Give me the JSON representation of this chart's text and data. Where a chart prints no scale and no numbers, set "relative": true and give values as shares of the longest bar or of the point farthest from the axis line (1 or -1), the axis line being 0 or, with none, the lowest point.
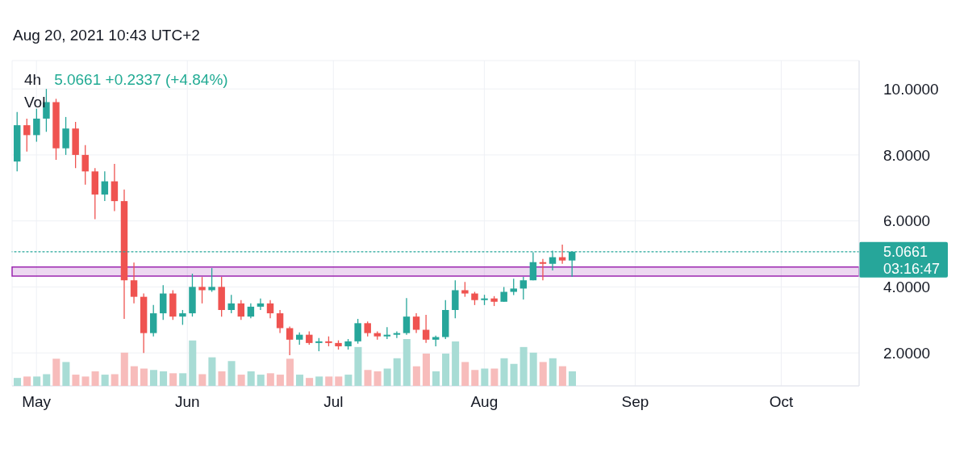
{
  "chart_data": [
    {
      "type": "candlestick",
      "title": "4h",
      "subtitle": "5.0661 +0.2337 (+4.84%)",
      "x": [
        "2021-04-27",
        "2021-04-29",
        "2021-05-01",
        "2021-05-03",
        "2021-05-05",
        "2021-05-07",
        "2021-05-09",
        "2021-05-11",
        "2021-05-13",
        "2021-05-15",
        "2021-05-17",
        "2021-05-19",
        "2021-05-21",
        "2021-05-23",
        "2021-05-25",
        "2021-05-27",
        "2021-05-29",
        "2021-05-31",
        "2021-06-02",
        "2021-06-04",
        "2021-06-06",
        "2021-06-08",
        "2021-06-10",
        "2021-06-12",
        "2021-06-14",
        "2021-06-16",
        "2021-06-18",
        "2021-06-20",
        "2021-06-22",
        "2021-06-24",
        "2021-06-26",
        "2021-06-28",
        "2021-06-30",
        "2021-07-02",
        "2021-07-04",
        "2021-07-06",
        "2021-07-08",
        "2021-07-10",
        "2021-07-12",
        "2021-07-14",
        "2021-07-16",
        "2021-07-18",
        "2021-07-20",
        "2021-07-22",
        "2021-07-24",
        "2021-07-26",
        "2021-07-28",
        "2021-07-30",
        "2021-08-01",
        "2021-08-03",
        "2021-08-05",
        "2021-08-07",
        "2021-08-09",
        "2021-08-11",
        "2021-08-13",
        "2021-08-15",
        "2021-08-17",
        "2021-08-19"
      ],
      "ohlc": [
        [
          7.8,
          9.3,
          7.5,
          8.9
        ],
        [
          8.9,
          9.1,
          8.1,
          8.6
        ],
        [
          8.6,
          9.4,
          8.4,
          9.1
        ],
        [
          9.1,
          10.0,
          8.7,
          9.6
        ],
        [
          9.6,
          9.7,
          7.85,
          8.2
        ],
        [
          8.2,
          9.15,
          8.0,
          8.8
        ],
        [
          8.8,
          9.0,
          7.6,
          8.0
        ],
        [
          8.0,
          8.3,
          7.1,
          7.5
        ],
        [
          7.5,
          7.6,
          6.05,
          6.8
        ],
        [
          6.8,
          7.5,
          6.6,
          7.2
        ],
        [
          7.2,
          7.73,
          6.3,
          6.6
        ],
        [
          6.6,
          6.95,
          3.03,
          4.2
        ],
        [
          4.2,
          4.74,
          3.5,
          3.7
        ],
        [
          3.7,
          3.8,
          2.0,
          2.6
        ],
        [
          2.6,
          3.45,
          2.5,
          3.2
        ],
        [
          3.2,
          4.05,
          3.0,
          3.8
        ],
        [
          3.8,
          3.9,
          3.0,
          3.1
        ],
        [
          3.1,
          3.3,
          2.85,
          3.2
        ],
        [
          3.2,
          4.4,
          3.1,
          4.0
        ],
        [
          4.0,
          4.3,
          3.5,
          3.9
        ],
        [
          3.9,
          4.57,
          3.85,
          4.0
        ],
        [
          4.0,
          4.3,
          3.1,
          3.3
        ],
        [
          3.3,
          3.76,
          3.2,
          3.5
        ],
        [
          3.5,
          3.6,
          3.0,
          3.1
        ],
        [
          3.1,
          3.5,
          3.05,
          3.4
        ],
        [
          3.4,
          3.65,
          3.3,
          3.5
        ],
        [
          3.5,
          3.6,
          3.05,
          3.2
        ],
        [
          3.2,
          3.3,
          2.6,
          2.75
        ],
        [
          2.75,
          2.8,
          1.93,
          2.4
        ],
        [
          2.4,
          2.62,
          2.25,
          2.55
        ],
        [
          2.55,
          2.65,
          2.25,
          2.3
        ],
        [
          2.3,
          2.45,
          2.05,
          2.35
        ],
        [
          2.35,
          2.5,
          2.2,
          2.3
        ],
        [
          2.3,
          2.38,
          2.1,
          2.2
        ],
        [
          2.2,
          2.42,
          2.1,
          2.35
        ],
        [
          2.35,
          3.03,
          2.28,
          2.9
        ],
        [
          2.9,
          2.95,
          2.5,
          2.6
        ],
        [
          2.6,
          2.65,
          2.4,
          2.5
        ],
        [
          2.5,
          2.78,
          2.42,
          2.55
        ],
        [
          2.55,
          2.65,
          2.45,
          2.6
        ],
        [
          2.6,
          3.66,
          2.55,
          3.1
        ],
        [
          3.1,
          3.2,
          2.6,
          2.7
        ],
        [
          2.7,
          3.15,
          2.3,
          2.4
        ],
        [
          2.4,
          2.52,
          2.2,
          2.48
        ],
        [
          2.48,
          3.6,
          2.42,
          3.3
        ],
        [
          3.3,
          4.2,
          3.05,
          3.9
        ],
        [
          3.9,
          4.15,
          3.7,
          3.8
        ],
        [
          3.8,
          3.85,
          3.45,
          3.6
        ],
        [
          3.6,
          3.76,
          3.45,
          3.65
        ],
        [
          3.65,
          3.72,
          3.42,
          3.55
        ],
        [
          3.55,
          4.0,
          3.55,
          3.85
        ],
        [
          3.85,
          4.25,
          3.75,
          3.95
        ],
        [
          3.95,
          4.3,
          3.62,
          4.2
        ],
        [
          4.2,
          5.05,
          4.2,
          4.75
        ],
        [
          4.75,
          4.85,
          4.2,
          4.7
        ],
        [
          4.7,
          5.1,
          4.5,
          4.9
        ],
        [
          4.9,
          5.28,
          4.7,
          4.8
        ],
        [
          4.8,
          5.07,
          4.3,
          5.0661
        ]
      ],
      "colors": [
        "#26a69a",
        "#ef5350",
        "#26a69a",
        "#26a69a",
        "#ef5350",
        "#26a69a",
        "#ef5350",
        "#ef5350",
        "#ef5350",
        "#26a69a",
        "#ef5350",
        "#ef5350",
        "#ef5350",
        "#ef5350",
        "#26a69a",
        "#26a69a",
        "#ef5350",
        "#26a69a",
        "#26a69a",
        "#ef5350",
        "#26a69a",
        "#ef5350",
        "#26a69a",
        "#ef5350",
        "#26a69a",
        "#26a69a",
        "#ef5350",
        "#ef5350",
        "#ef5350",
        "#26a69a",
        "#ef5350",
        "#26a69a",
        "#ef5350",
        "#ef5350",
        "#26a69a",
        "#26a69a",
        "#ef5350",
        "#ef5350",
        "#26a69a",
        "#26a69a",
        "#26a69a",
        "#ef5350",
        "#ef5350",
        "#26a69a",
        "#26a69a",
        "#26a69a",
        "#ef5350",
        "#ef5350",
        "#26a69a",
        "#ef5350",
        "#26a69a",
        "#26a69a",
        "#26a69a",
        "#26a69a",
        "#ef5350",
        "#26a69a",
        "#ef5350",
        "#26a69a"
      ],
      "xlim": [
        "2021-04-26",
        "2021-10-17"
      ],
      "xticks": [
        {
          "value": "2021-05-01",
          "label": "May"
        },
        {
          "value": "2021-06-01",
          "label": "Jun"
        },
        {
          "value": "2021-07-01",
          "label": "Jul"
        },
        {
          "value": "2021-08-01",
          "label": "Aug"
        },
        {
          "value": "2021-09-01",
          "label": "Sep"
        },
        {
          "value": "2021-10-01",
          "label": "Oct"
        }
      ],
      "ylim": [
        1,
        10.86
      ],
      "yticks": [
        {
          "value": 2,
          "label": "2.0000"
        },
        {
          "value": 4,
          "label": "4.0000"
        },
        {
          "value": 6,
          "label": "6.0000"
        },
        {
          "value": 8,
          "label": "8.0000"
        },
        {
          "value": 10,
          "label": "10.0000"
        }
      ],
      "grid": true,
      "ref_lines": [
        {
          "axis": "y",
          "value": 5.0661,
          "label": "5.0661",
          "color": "#26a69a",
          "line_style": "dotted"
        }
      ],
      "bands": [
        {
          "axis": "y",
          "from": 4.33,
          "to": 4.6,
          "color": "#9c27b0"
        }
      ],
      "annotations": [
        "Aug 20, 2021 10:43 UTC+2",
        "03:16:47"
      ]
    },
    {
      "type": "bar",
      "title": "Vol",
      "relative": true,
      "tick_labels": false,
      "x": [
        "2021-04-27",
        "2021-04-29",
        "2021-05-01",
        "2021-05-03",
        "2021-05-05",
        "2021-05-07",
        "2021-05-09",
        "2021-05-11",
        "2021-05-13",
        "2021-05-15",
        "2021-05-17",
        "2021-05-19",
        "2021-05-21",
        "2021-05-23",
        "2021-05-25",
        "2021-05-27",
        "2021-05-29",
        "2021-05-31",
        "2021-06-02",
        "2021-06-04",
        "2021-06-06",
        "2021-06-08",
        "2021-06-10",
        "2021-06-12",
        "2021-06-14",
        "2021-06-16",
        "2021-06-18",
        "2021-06-20",
        "2021-06-22",
        "2021-06-24",
        "2021-06-26",
        "2021-06-28",
        "2021-06-30",
        "2021-07-02",
        "2021-07-04",
        "2021-07-06",
        "2021-07-08",
        "2021-07-10",
        "2021-07-12",
        "2021-07-14",
        "2021-07-16",
        "2021-07-18",
        "2021-07-20",
        "2021-07-22",
        "2021-07-24",
        "2021-07-26",
        "2021-07-28",
        "2021-07-30",
        "2021-08-01",
        "2021-08-03",
        "2021-08-05",
        "2021-08-07",
        "2021-08-09",
        "2021-08-11",
        "2021-08-13",
        "2021-08-15",
        "2021-08-17",
        "2021-08-19"
      ],
      "xlim": [
        "2021-04-26",
        "2021-10-17"
      ],
      "values": [
        0.17,
        0.2,
        0.2,
        0.25,
        0.58,
        0.51,
        0.24,
        0.2,
        0.31,
        0.24,
        0.25,
        0.71,
        0.42,
        0.37,
        0.34,
        0.31,
        0.27,
        0.27,
        0.97,
        0.25,
        0.61,
        0.31,
        0.53,
        0.24,
        0.31,
        0.24,
        0.27,
        0.24,
        0.58,
        0.24,
        0.17,
        0.2,
        0.2,
        0.2,
        0.24,
        0.83,
        0.34,
        0.31,
        0.37,
        0.59,
        1,
        0.42,
        0.69,
        0.31,
        0.69,
        0.95,
        0.51,
        0.34,
        0.37,
        0.37,
        0.59,
        0.47,
        0.83,
        0.71,
        0.51,
        0.59,
        0.42,
        0.31
      ],
      "colors": [
        "#a8dcd5",
        "#f7bcbb",
        "#a8dcd5",
        "#a8dcd5",
        "#f7bcbb",
        "#a8dcd5",
        "#f7bcbb",
        "#f7bcbb",
        "#f7bcbb",
        "#a8dcd5",
        "#f7bcbb",
        "#f7bcbb",
        "#f7bcbb",
        "#f7bcbb",
        "#a8dcd5",
        "#a8dcd5",
        "#f7bcbb",
        "#a8dcd5",
        "#a8dcd5",
        "#f7bcbb",
        "#a8dcd5",
        "#f7bcbb",
        "#a8dcd5",
        "#f7bcbb",
        "#a8dcd5",
        "#a8dcd5",
        "#f7bcbb",
        "#f7bcbb",
        "#f7bcbb",
        "#a8dcd5",
        "#f7bcbb",
        "#a8dcd5",
        "#f7bcbb",
        "#f7bcbb",
        "#a8dcd5",
        "#a8dcd5",
        "#f7bcbb",
        "#f7bcbb",
        "#a8dcd5",
        "#a8dcd5",
        "#a8dcd5",
        "#f7bcbb",
        "#f7bcbb",
        "#a8dcd5",
        "#a8dcd5",
        "#a8dcd5",
        "#f7bcbb",
        "#f7bcbb",
        "#a8dcd5",
        "#f7bcbb",
        "#a8dcd5",
        "#a8dcd5",
        "#a8dcd5",
        "#a8dcd5",
        "#f7bcbb",
        "#a8dcd5",
        "#f7bcbb",
        "#a8dcd5"
      ]
    }
  ]
}
